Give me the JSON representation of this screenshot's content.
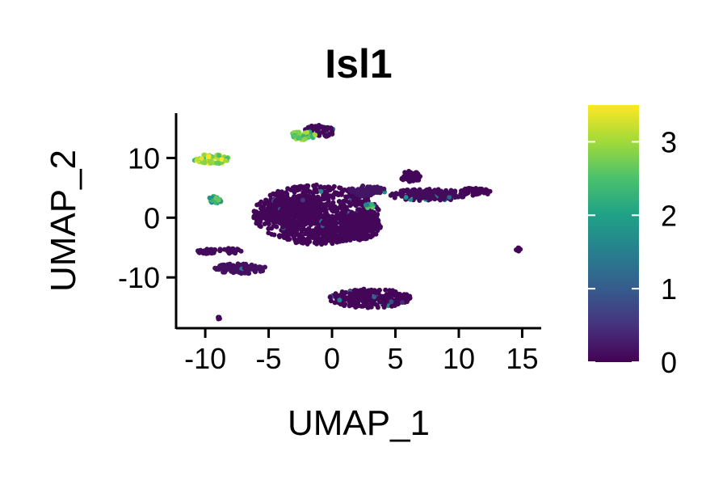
{
  "chart_data": {
    "type": "scatter",
    "title": "Isl1",
    "xlabel": "UMAP_1",
    "ylabel": "UMAP_2",
    "xlim": [
      -12.3,
      16.5
    ],
    "ylim": [
      -18.5,
      17.5
    ],
    "x_ticks": [
      -10,
      -5,
      0,
      5,
      10,
      15
    ],
    "x_tick_labels": [
      "-10",
      "-5",
      "0",
      "5",
      "10",
      "15"
    ],
    "y_ticks": [
      -10,
      0,
      10
    ],
    "y_tick_labels": [
      "-10",
      "0",
      "10"
    ],
    "grid": false,
    "colormap": "viridis",
    "colorbar": {
      "range": [
        0,
        3.5
      ],
      "ticks": [
        0,
        1,
        2,
        3
      ],
      "tick_labels": [
        "0",
        "1",
        "2",
        "3"
      ],
      "stops": [
        "#440154",
        "#46327e",
        "#365c8d",
        "#277f8e",
        "#1fa187",
        "#4ac16d",
        "#a0da39",
        "#fde725"
      ]
    },
    "clusters": [
      {
        "center": [
          -1.2,
          0.5
        ],
        "radius": [
          5.0,
          5.0
        ],
        "expression": 0.05
      },
      {
        "center": [
          -3.0,
          1.0
        ],
        "radius": [
          2.2,
          2.6
        ],
        "expression": 0.05
      },
      {
        "center": [
          1.5,
          -1.5
        ],
        "radius": [
          2.4,
          2.4
        ],
        "expression": 0.05
      },
      {
        "center": [
          3.0,
          -13.5
        ],
        "radius": [
          3.2,
          1.6
        ],
        "expression": 0.05
      },
      {
        "center": [
          7.5,
          3.8
        ],
        "radius": [
          3.0,
          1.0
        ],
        "expression": 0.1
      },
      {
        "center": [
          11.3,
          4.3
        ],
        "radius": [
          1.2,
          0.7
        ],
        "expression": 0.05
      },
      {
        "center": [
          6.2,
          6.8
        ],
        "radius": [
          0.8,
          1.0
        ],
        "expression": 0.05
      },
      {
        "center": [
          2.8,
          4.5
        ],
        "radius": [
          1.4,
          0.9
        ],
        "expression": 0.2
      },
      {
        "center": [
          -1.0,
          14.5
        ],
        "radius": [
          1.2,
          1.0
        ],
        "expression": 0.1
      },
      {
        "center": [
          -2.3,
          13.8
        ],
        "radius": [
          1.0,
          0.8
        ],
        "expression": 2.7
      },
      {
        "center": [
          -9.5,
          9.8
        ],
        "radius": [
          1.4,
          0.8
        ],
        "expression": 3.0
      },
      {
        "center": [
          -9.2,
          3.0
        ],
        "radius": [
          0.6,
          0.6
        ],
        "expression": 2.2
      },
      {
        "center": [
          -8.8,
          -5.6
        ],
        "radius": [
          2.1,
          0.5
        ],
        "expression": 0.1
      },
      {
        "center": [
          -7.3,
          -8.5
        ],
        "radius": [
          2.1,
          0.9
        ],
        "expression": 0.15
      },
      {
        "center": [
          3.0,
          2.0
        ],
        "radius": [
          0.4,
          0.4
        ],
        "expression": 2.1
      },
      {
        "center": [
          14.7,
          -5.3
        ],
        "radius": [
          0.3,
          0.3
        ],
        "expression": 0.05
      },
      {
        "center": [
          -9.0,
          -16.8
        ],
        "radius": [
          0.2,
          0.2
        ],
        "expression": 0.05
      }
    ]
  }
}
